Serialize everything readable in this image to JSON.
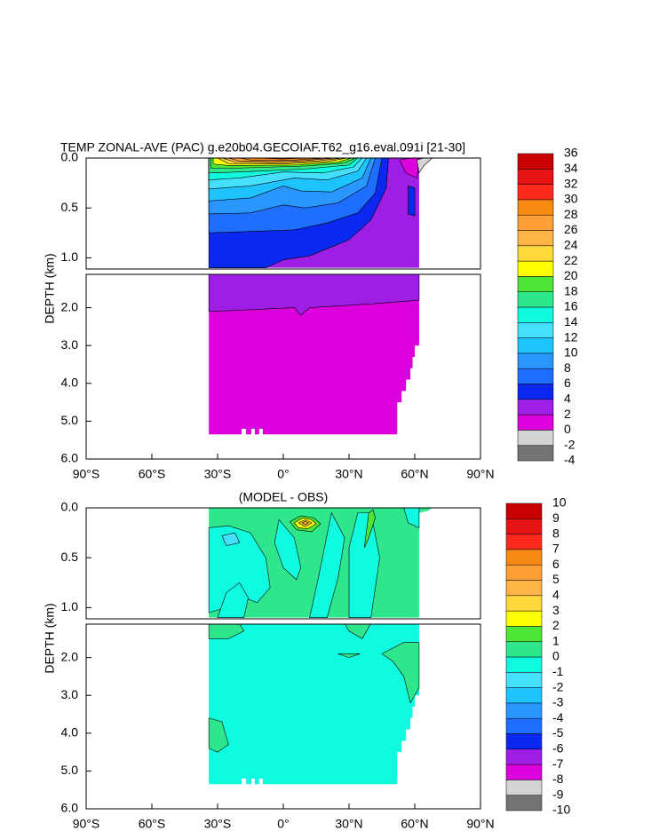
{
  "chart_data": [
    {
      "type": "contour",
      "title": "TEMP ZONAL-AVE (PAC) g.e20b04.GECOIAF.T62_g16.eval.091i [21-30]",
      "ylabel": "DEPTH (km)",
      "xlim": [
        -90,
        90
      ],
      "xticks": [
        {
          "value": -90,
          "label": "90°S"
        },
        {
          "value": -60,
          "label": "60°S"
        },
        {
          "value": -30,
          "label": "30°S"
        },
        {
          "value": 0,
          "label": "0°"
        },
        {
          "value": 30,
          "label": "30°N"
        },
        {
          "value": 60,
          "label": "60°N"
        },
        {
          "value": 90,
          "label": "90°N"
        }
      ],
      "ylim": [
        0,
        6
      ],
      "yticks": [
        {
          "value": 0,
          "label": "0.0"
        },
        {
          "value": 0.5,
          "label": "0.5"
        },
        {
          "value": 1,
          "label": "1.0"
        },
        {
          "value": 2,
          "label": "2.0"
        },
        {
          "value": 3,
          "label": "3.0"
        },
        {
          "value": 4,
          "label": "4.0"
        },
        {
          "value": 5,
          "label": "5.0"
        },
        {
          "value": 6,
          "label": "6.0"
        }
      ],
      "colorbar": {
        "levels": [
          -4,
          -2,
          0,
          2,
          4,
          6,
          8,
          10,
          12,
          14,
          16,
          18,
          20,
          22,
          24,
          26,
          28,
          30,
          32,
          34,
          36
        ],
        "colors": [
          "#737373",
          "#d4d4d4",
          "#dc00dc",
          "#9e1ee6",
          "#0a28f0",
          "#1e6eff",
          "#2a96ff",
          "#1ec4ff",
          "#46e0ff",
          "#10fae0",
          "#2ee68c",
          "#4ee636",
          "#ffff00",
          "#ffd83c",
          "#ffb446",
          "#ffa036",
          "#f88a14",
          "#ff2a1e",
          "#e61414",
          "#c80000"
        ]
      }
    },
    {
      "type": "contour",
      "title": "(MODEL - OBS)",
      "ylabel": "DEPTH (km)",
      "xlim": [
        -90,
        90
      ],
      "xticks": [
        {
          "value": -90,
          "label": "90°S"
        },
        {
          "value": -60,
          "label": "60°S"
        },
        {
          "value": -30,
          "label": "30°S"
        },
        {
          "value": 0,
          "label": "0°"
        },
        {
          "value": 30,
          "label": "30°N"
        },
        {
          "value": 60,
          "label": "60°N"
        },
        {
          "value": 90,
          "label": "90°N"
        }
      ],
      "ylim": [
        0,
        6
      ],
      "yticks": [
        {
          "value": 0,
          "label": "0.0"
        },
        {
          "value": 0.5,
          "label": "0.5"
        },
        {
          "value": 1,
          "label": "1.0"
        },
        {
          "value": 2,
          "label": "2.0"
        },
        {
          "value": 3,
          "label": "3.0"
        },
        {
          "value": 4,
          "label": "4.0"
        },
        {
          "value": 5,
          "label": "5.0"
        },
        {
          "value": 6,
          "label": "6.0"
        }
      ],
      "colorbar": {
        "levels": [
          -10,
          -9,
          -8,
          -7,
          -6,
          -5,
          -4,
          -3,
          -2,
          -1,
          0,
          1,
          2,
          3,
          4,
          5,
          6,
          7,
          8,
          9,
          10
        ],
        "colors": [
          "#737373",
          "#d4d4d4",
          "#dc00dc",
          "#9e1ee6",
          "#0a28f0",
          "#1e6eff",
          "#2a96ff",
          "#1ec4ff",
          "#46e0ff",
          "#10fae0",
          "#2ee68c",
          "#4ee636",
          "#ffff00",
          "#ffd83c",
          "#ffb446",
          "#ffa036",
          "#f88a14",
          "#ff2a1e",
          "#e61414",
          "#c80000"
        ]
      }
    }
  ]
}
